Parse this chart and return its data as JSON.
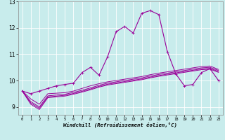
{
  "xlabel": "Windchill (Refroidissement éolien,°C)",
  "bg_color": "#c8ecec",
  "line_color": "#990099",
  "grid_color": "#ffffff",
  "x_ticks": [
    0,
    1,
    2,
    3,
    4,
    5,
    6,
    7,
    8,
    9,
    10,
    11,
    12,
    13,
    14,
    15,
    16,
    17,
    18,
    19,
    20,
    21,
    22,
    23
  ],
  "ylim": [
    8.7,
    13.0
  ],
  "xlim": [
    -0.5,
    23.5
  ],
  "series": {
    "main": {
      "x": [
        0,
        1,
        2,
        3,
        4,
        5,
        6,
        7,
        8,
        9,
        10,
        11,
        12,
        13,
        14,
        15,
        16,
        17,
        18,
        19,
        20,
        21,
        22,
        23
      ],
      "y": [
        9.6,
        9.5,
        9.6,
        9.7,
        9.8,
        9.85,
        9.9,
        10.3,
        10.5,
        10.2,
        10.9,
        11.85,
        12.05,
        11.8,
        12.55,
        12.65,
        12.5,
        11.1,
        10.25,
        9.8,
        9.85,
        10.3,
        10.45,
        10.0
      ]
    },
    "line2": {
      "x": [
        0,
        1,
        2,
        3,
        4,
        5,
        6,
        7,
        8,
        9,
        10,
        11,
        12,
        13,
        14,
        15,
        16,
        17,
        18,
        19,
        20,
        21,
        22,
        23
      ],
      "y": [
        9.6,
        9.3,
        9.1,
        9.5,
        9.52,
        9.54,
        9.6,
        9.7,
        9.8,
        9.88,
        9.95,
        10.0,
        10.05,
        10.1,
        10.15,
        10.22,
        10.28,
        10.33,
        10.38,
        10.43,
        10.48,
        10.53,
        10.55,
        10.42
      ]
    },
    "line3": {
      "x": [
        0,
        1,
        2,
        3,
        4,
        5,
        6,
        7,
        8,
        9,
        10,
        11,
        12,
        13,
        14,
        15,
        16,
        17,
        18,
        19,
        20,
        21,
        22,
        23
      ],
      "y": [
        9.6,
        9.2,
        9.0,
        9.42,
        9.45,
        9.48,
        9.55,
        9.63,
        9.72,
        9.82,
        9.9,
        9.95,
        10.0,
        10.05,
        10.1,
        10.17,
        10.23,
        10.28,
        10.33,
        10.38,
        10.43,
        10.48,
        10.5,
        10.38
      ]
    },
    "line4": {
      "x": [
        0,
        1,
        2,
        3,
        4,
        5,
        6,
        7,
        8,
        9,
        10,
        11,
        12,
        13,
        14,
        15,
        16,
        17,
        18,
        19,
        20,
        21,
        22,
        23
      ],
      "y": [
        9.6,
        9.15,
        8.95,
        9.38,
        9.41,
        9.44,
        9.51,
        9.59,
        9.68,
        9.78,
        9.86,
        9.91,
        9.96,
        10.01,
        10.06,
        10.13,
        10.19,
        10.24,
        10.29,
        10.34,
        10.39,
        10.44,
        10.46,
        10.34
      ]
    },
    "line5": {
      "x": [
        0,
        1,
        2,
        3,
        4,
        5,
        6,
        7,
        8,
        9,
        10,
        11,
        12,
        13,
        14,
        15,
        16,
        17,
        18,
        19,
        20,
        21,
        22,
        23
      ],
      "y": [
        9.6,
        9.1,
        8.9,
        9.35,
        9.38,
        9.41,
        9.48,
        9.56,
        9.65,
        9.75,
        9.83,
        9.88,
        9.93,
        9.98,
        10.03,
        10.1,
        10.16,
        10.21,
        10.26,
        10.31,
        10.36,
        10.41,
        10.43,
        10.31
      ]
    }
  }
}
